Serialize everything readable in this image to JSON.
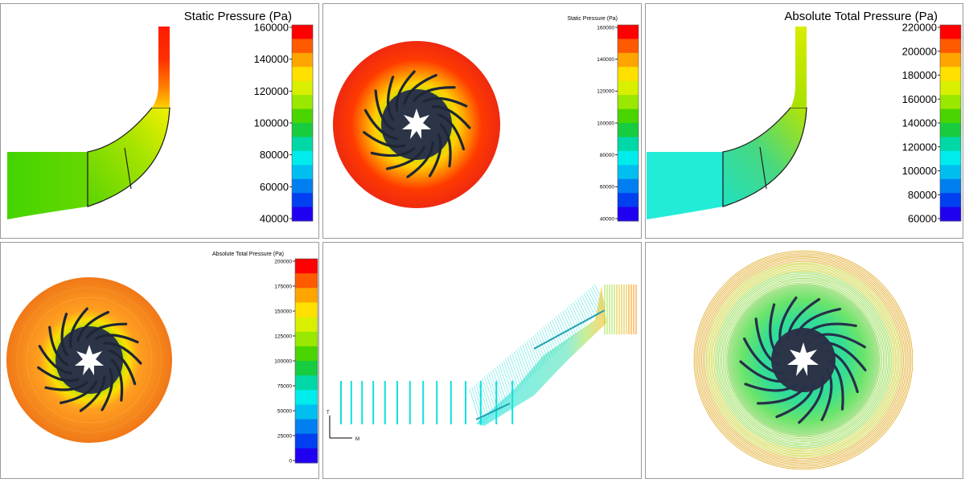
{
  "panels": {
    "p1": {
      "title": "Static Pressure (Pa)",
      "ticks": [
        "160000",
        "140000",
        "120000",
        "100000",
        "80000",
        "60000",
        "40000"
      ]
    },
    "p2": {
      "title": "Static Pressure (Pa)",
      "ticks": [
        "160000",
        "140000",
        "120000",
        "100000",
        "80000",
        "60000",
        "40000"
      ]
    },
    "p3": {
      "title": "Absolute Total Pressure (Pa)",
      "ticks": [
        "220000",
        "200000",
        "180000",
        "160000",
        "140000",
        "120000",
        "100000",
        "80000",
        "60000"
      ]
    },
    "p4": {
      "title": "Absolute Total Pressure (Pa)",
      "ticks": [
        "200000",
        "175000",
        "150000",
        "125000",
        "100000",
        "75000",
        "50000",
        "25000",
        "0"
      ]
    },
    "p5": {
      "axis_t": "T",
      "axis_m": "M"
    }
  },
  "colormap": [
    "#ff0000",
    "#ff5a00",
    "#ffa500",
    "#ffe000",
    "#d8f000",
    "#9ae800",
    "#4ad400",
    "#18cc40",
    "#00d8a8",
    "#00ecec",
    "#00bff0",
    "#007ff0",
    "#0040f0",
    "#2000f0"
  ]
}
